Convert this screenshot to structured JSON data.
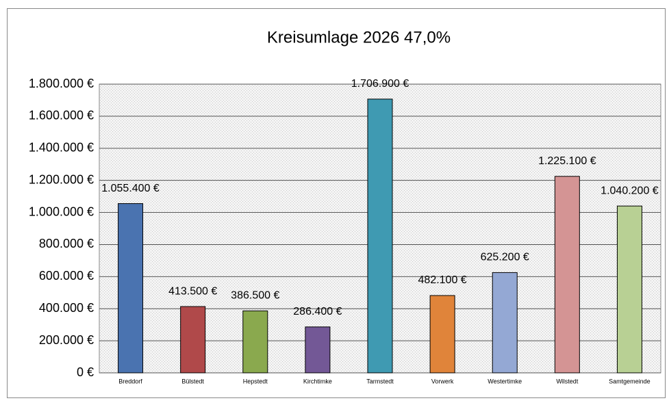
{
  "chart_data": {
    "type": "bar",
    "title": "Kreisumlage 2026 47,0%",
    "categories": [
      "Breddorf",
      "Bülstedt",
      "Hepstedt",
      "Kirchtimke",
      "Tarmstedt",
      "Vorwerk",
      "Westertimke",
      "Wilstedt",
      "Samtgemeinde"
    ],
    "values": [
      1055400,
      413500,
      386500,
      286400,
      1706900,
      482100,
      625200,
      1225100,
      1040200
    ],
    "value_labels": [
      "1.055.400 €",
      "413.500 €",
      "386.500 €",
      "286.400 €",
      "1.706.900 €",
      "482.100 €",
      "625.200 €",
      "1.225.100 €",
      "1.040.200 €"
    ],
    "colors": [
      "#4a73b0",
      "#b0494a",
      "#8aa94e",
      "#735896",
      "#3f9ab2",
      "#e0843a",
      "#94a8d4",
      "#d49494",
      "#b8d094"
    ],
    "ylim": [
      0,
      1800000
    ],
    "yticks": [
      {
        "value": 0,
        "label": "0 €"
      },
      {
        "value": 200000,
        "label": "200.000 €"
      },
      {
        "value": 400000,
        "label": "400.000 €"
      },
      {
        "value": 600000,
        "label": "600.000 €"
      },
      {
        "value": 800000,
        "label": "800.000 €"
      },
      {
        "value": 1000000,
        "label": "1.000.000 €"
      },
      {
        "value": 1200000,
        "label": "1.200.000 €"
      },
      {
        "value": 1400000,
        "label": "1.400.000 €"
      },
      {
        "value": 1600000,
        "label": "1.600.000 €"
      },
      {
        "value": 1800000,
        "label": "1.800.000 €"
      }
    ],
    "grid": true
  }
}
